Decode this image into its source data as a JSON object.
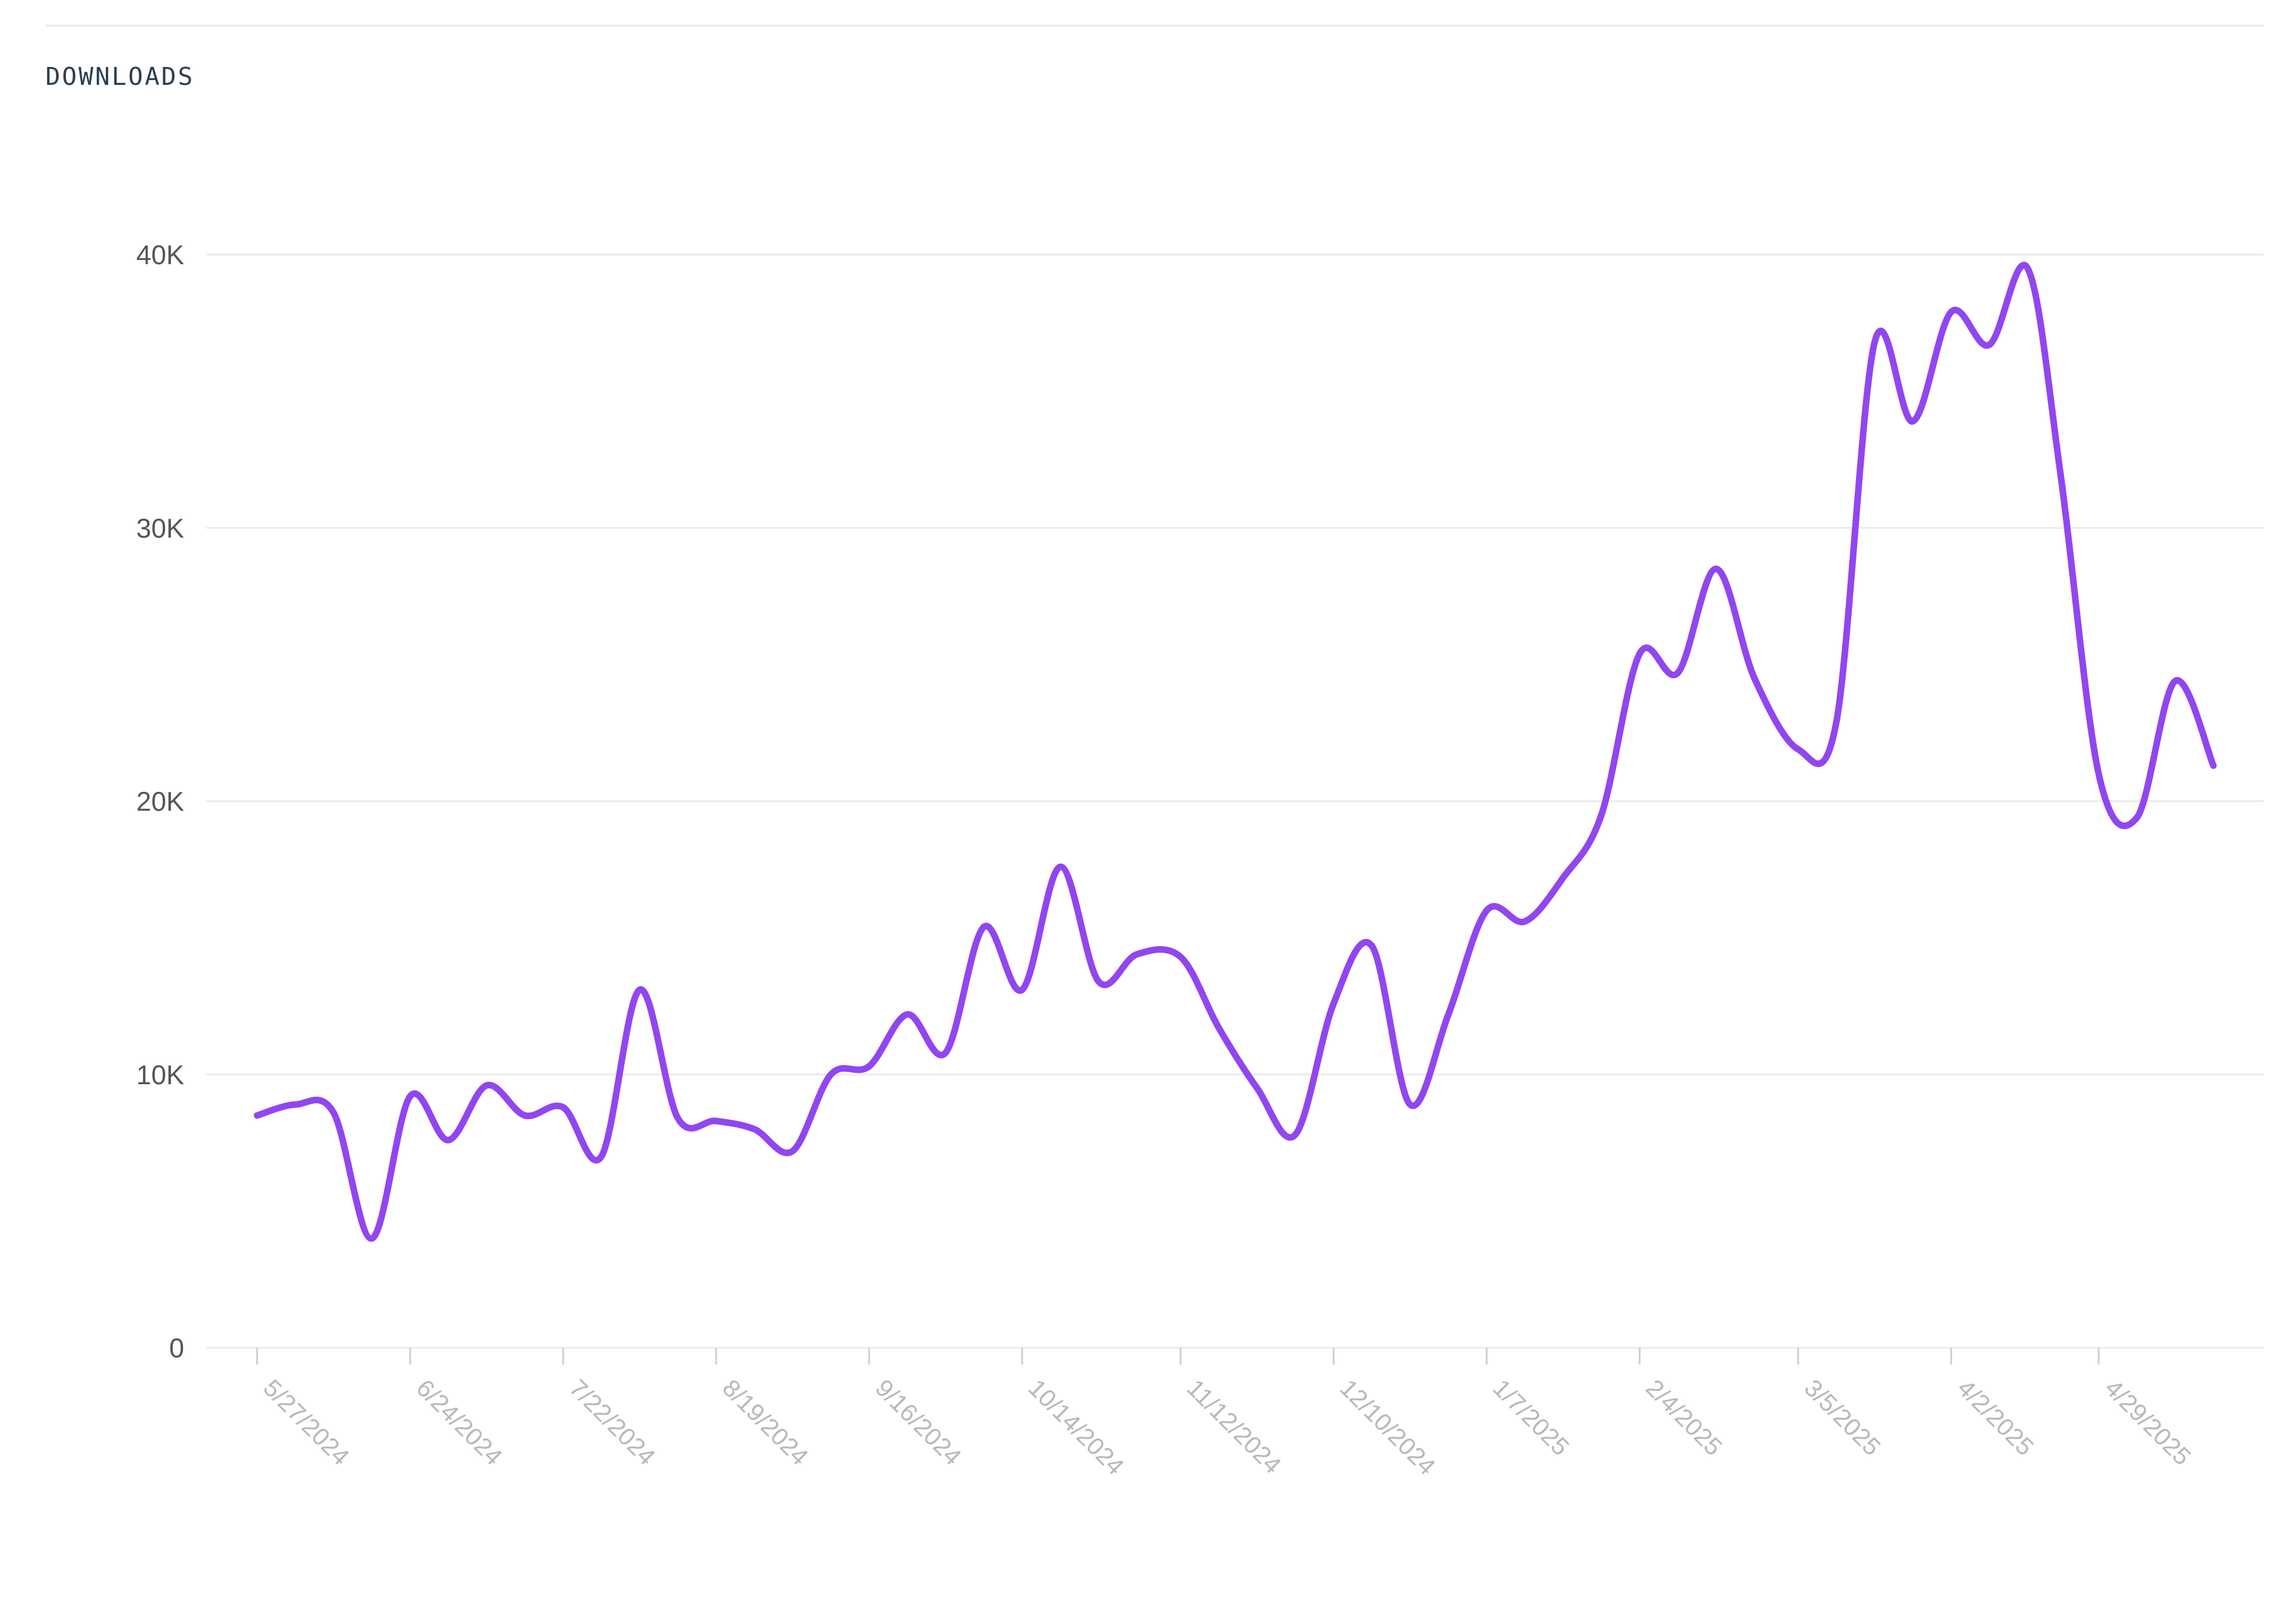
{
  "section": {
    "title": "DOWNLOADS"
  },
  "colors": {
    "line": "#9146f0",
    "grid": "#ebebeb",
    "axis_text": "#555555",
    "date_text": "#b8b8b8"
  },
  "chart_data": {
    "type": "line",
    "title": "DOWNLOADS",
    "xlabel": "",
    "ylabel": "",
    "ylim": [
      0,
      40000
    ],
    "grid": true,
    "yticks": [
      {
        "value": 0,
        "label": "0"
      },
      {
        "value": 10000,
        "label": "10K"
      },
      {
        "value": 20000,
        "label": "20K"
      },
      {
        "value": 30000,
        "label": "30K"
      },
      {
        "value": 40000,
        "label": "40K"
      }
    ],
    "xticks": [
      {
        "value": "2024-05-27",
        "label": "5/27/2024"
      },
      {
        "value": "2024-06-24",
        "label": "6/24/2024"
      },
      {
        "value": "2024-07-22",
        "label": "7/22/2024"
      },
      {
        "value": "2024-08-19",
        "label": "8/19/2024"
      },
      {
        "value": "2024-09-16",
        "label": "9/16/2024"
      },
      {
        "value": "2024-10-14",
        "label": "10/14/2024"
      },
      {
        "value": "2024-11-12",
        "label": "11/12/2024"
      },
      {
        "value": "2024-12-10",
        "label": "12/10/2024"
      },
      {
        "value": "2025-01-07",
        "label": "1/7/2025"
      },
      {
        "value": "2025-02-04",
        "label": "2/4/2025"
      },
      {
        "value": "2025-03-05",
        "label": "3/5/2025"
      },
      {
        "value": "2025-04-02",
        "label": "4/2/2025"
      },
      {
        "value": "2025-04-29",
        "label": "4/29/2025"
      }
    ],
    "series": [
      {
        "values": [
          [
            "2024-05-27",
            8500
          ],
          [
            "2024-06-03",
            8900
          ],
          [
            "2024-06-10",
            8600
          ],
          [
            "2024-06-17",
            4000
          ],
          [
            "2024-06-24",
            9200
          ],
          [
            "2024-07-01",
            7600
          ],
          [
            "2024-07-08",
            9600
          ],
          [
            "2024-07-15",
            8500
          ],
          [
            "2024-07-22",
            8800
          ],
          [
            "2024-07-29",
            7000
          ],
          [
            "2024-08-05",
            13100
          ],
          [
            "2024-08-12",
            8400
          ],
          [
            "2024-08-19",
            8300
          ],
          [
            "2024-08-26",
            8000
          ],
          [
            "2024-09-02",
            7200
          ],
          [
            "2024-09-09",
            10000
          ],
          [
            "2024-09-16",
            10300
          ],
          [
            "2024-09-23",
            12200
          ],
          [
            "2024-09-30",
            10800
          ],
          [
            "2024-10-07",
            15400
          ],
          [
            "2024-10-14",
            13100
          ],
          [
            "2024-10-21",
            17600
          ],
          [
            "2024-10-28",
            13400
          ],
          [
            "2024-11-04",
            14400
          ],
          [
            "2024-11-12",
            14300
          ],
          [
            "2024-11-19",
            11700
          ],
          [
            "2024-11-26",
            9500
          ],
          [
            "2024-12-03",
            7800
          ],
          [
            "2024-12-10",
            12600
          ],
          [
            "2024-12-17",
            14700
          ],
          [
            "2024-12-24",
            8900
          ],
          [
            "2024-12-31",
            12200
          ],
          [
            "2025-01-07",
            16000
          ],
          [
            "2025-01-14",
            15600
          ],
          [
            "2025-01-21",
            17200
          ],
          [
            "2025-01-28",
            19500
          ],
          [
            "2025-02-04",
            25400
          ],
          [
            "2025-02-11",
            24700
          ],
          [
            "2025-02-18",
            28500
          ],
          [
            "2025-02-25",
            24500
          ],
          [
            "2025-03-05",
            21900
          ],
          [
            "2025-03-12",
            22900
          ],
          [
            "2025-03-19",
            36800
          ],
          [
            "2025-03-26",
            33900
          ],
          [
            "2025-04-02",
            37900
          ],
          [
            "2025-04-09",
            36700
          ],
          [
            "2025-04-16",
            39500
          ],
          [
            "2025-04-22",
            32000
          ],
          [
            "2025-04-29",
            21000
          ],
          [
            "2025-05-06",
            19400
          ],
          [
            "2025-05-13",
            24400
          ],
          [
            "2025-05-20",
            21300
          ]
        ]
      }
    ]
  }
}
